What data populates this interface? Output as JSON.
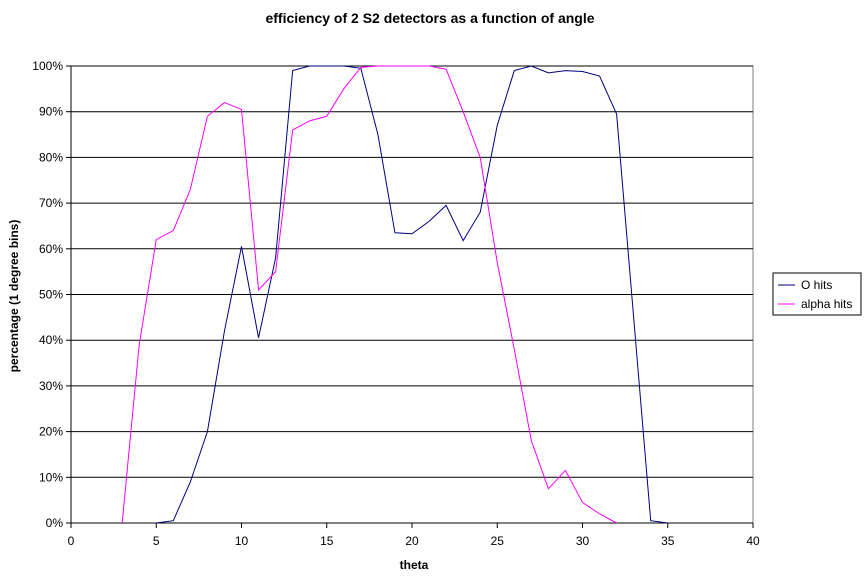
{
  "chart_data": {
    "type": "line",
    "title": "efficiency of 2 S2 detectors as a function of angle",
    "xlabel": "theta",
    "ylabel": "percentage (1 degree bins)",
    "xlim": [
      0,
      40
    ],
    "ylim": [
      0,
      100
    ],
    "x_ticks": [
      "0",
      "5",
      "10",
      "15",
      "20",
      "25",
      "30",
      "35",
      "40"
    ],
    "y_ticks": [
      "0%",
      "10%",
      "20%",
      "30%",
      "40%",
      "50%",
      "60%",
      "70%",
      "80%",
      "90%",
      "100%"
    ],
    "grid": "horizontal",
    "legend_position": "right",
    "series": [
      {
        "name": "O hits",
        "color": "#000080",
        "points": [
          [
            5,
            0
          ],
          [
            6,
            0.5
          ],
          [
            7,
            9
          ],
          [
            8,
            20
          ],
          [
            9,
            42
          ],
          [
            10,
            60.5
          ],
          [
            11,
            40.5
          ],
          [
            12,
            58
          ],
          [
            13,
            99
          ],
          [
            14,
            100
          ],
          [
            15,
            100
          ],
          [
            16,
            100
          ],
          [
            17,
            99.5
          ],
          [
            18,
            85
          ],
          [
            19,
            63.5
          ],
          [
            20,
            63.3
          ],
          [
            21,
            66
          ],
          [
            22,
            69.5
          ],
          [
            23,
            61.8
          ],
          [
            24,
            68
          ],
          [
            25,
            87
          ],
          [
            26,
            99
          ],
          [
            27,
            100
          ],
          [
            28,
            98.5
          ],
          [
            29,
            99
          ],
          [
            30,
            98.8
          ],
          [
            31,
            97.8
          ],
          [
            32,
            89.5
          ],
          [
            34,
            0.5
          ],
          [
            35,
            0
          ]
        ]
      },
      {
        "name": "alpha hits",
        "color": "#ff00ff",
        "points": [
          [
            3,
            0
          ],
          [
            4,
            39
          ],
          [
            5,
            62
          ],
          [
            6,
            64
          ],
          [
            7,
            73
          ],
          [
            8,
            89
          ],
          [
            9,
            92
          ],
          [
            10,
            90.5
          ],
          [
            11,
            51
          ],
          [
            12,
            55
          ],
          [
            13,
            86
          ],
          [
            14,
            88
          ],
          [
            15,
            89
          ],
          [
            16,
            95
          ],
          [
            17,
            99.7
          ],
          [
            18,
            100
          ],
          [
            19,
            100
          ],
          [
            20,
            100
          ],
          [
            21,
            100
          ],
          [
            22,
            99.3
          ],
          [
            23,
            90
          ],
          [
            24,
            80
          ],
          [
            25,
            57
          ],
          [
            26,
            38
          ],
          [
            27,
            18
          ],
          [
            28,
            7.5
          ],
          [
            29,
            11.5
          ],
          [
            30,
            4.5
          ],
          [
            31,
            2
          ],
          [
            32,
            0
          ]
        ]
      }
    ]
  }
}
